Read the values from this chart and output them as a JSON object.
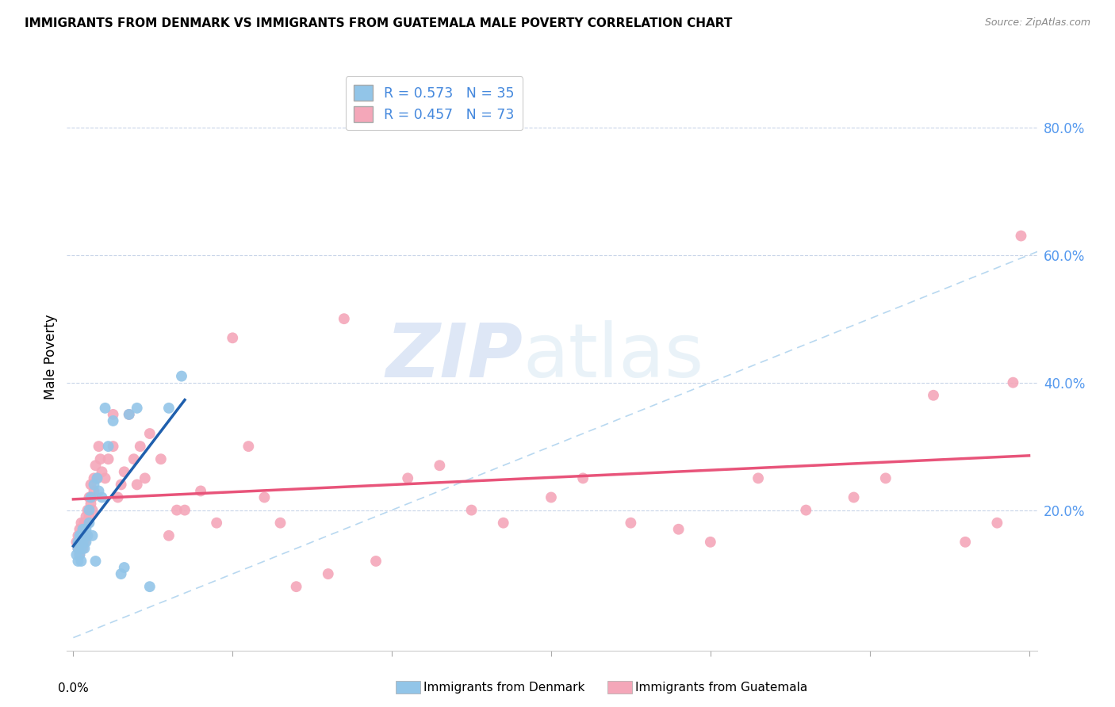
{
  "title": "IMMIGRANTS FROM DENMARK VS IMMIGRANTS FROM GUATEMALA MALE POVERTY CORRELATION CHART",
  "source": "Source: ZipAtlas.com",
  "ylabel": "Male Poverty",
  "ylabel_right_ticks": [
    "80.0%",
    "60.0%",
    "40.0%",
    "20.0%"
  ],
  "ylabel_right_vals": [
    0.8,
    0.6,
    0.4,
    0.2
  ],
  "xlim": [
    0.0,
    0.6
  ],
  "ylim": [
    0.0,
    0.9
  ],
  "denmark_R": 0.573,
  "denmark_N": 35,
  "guatemala_R": 0.457,
  "guatemala_N": 73,
  "denmark_color": "#92C5E8",
  "guatemala_color": "#F4A7B9",
  "denmark_line_color": "#1F5FAD",
  "guatemala_line_color": "#E8547A",
  "diagonal_color": "#B8D8F0",
  "legend_denmark_label": "R = 0.573   N = 35",
  "legend_guatemala_label": "R = 0.457   N = 73",
  "denmark_x": [
    0.002,
    0.003,
    0.003,
    0.003,
    0.004,
    0.004,
    0.005,
    0.005,
    0.005,
    0.006,
    0.006,
    0.007,
    0.007,
    0.008,
    0.008,
    0.009,
    0.01,
    0.01,
    0.011,
    0.012,
    0.013,
    0.014,
    0.015,
    0.016,
    0.018,
    0.02,
    0.022,
    0.025,
    0.03,
    0.032,
    0.035,
    0.04,
    0.048,
    0.06,
    0.068
  ],
  "denmark_y": [
    0.13,
    0.14,
    0.12,
    0.15,
    0.13,
    0.16,
    0.14,
    0.16,
    0.12,
    0.15,
    0.17,
    0.14,
    0.16,
    0.15,
    0.17,
    0.16,
    0.18,
    0.2,
    0.22,
    0.16,
    0.24,
    0.12,
    0.25,
    0.23,
    0.22,
    0.36,
    0.3,
    0.34,
    0.1,
    0.11,
    0.35,
    0.36,
    0.08,
    0.36,
    0.41
  ],
  "guatemala_x": [
    0.002,
    0.003,
    0.003,
    0.004,
    0.004,
    0.005,
    0.005,
    0.006,
    0.006,
    0.007,
    0.007,
    0.008,
    0.008,
    0.009,
    0.009,
    0.01,
    0.01,
    0.011,
    0.011,
    0.012,
    0.012,
    0.013,
    0.013,
    0.014,
    0.015,
    0.016,
    0.017,
    0.018,
    0.02,
    0.022,
    0.025,
    0.025,
    0.028,
    0.03,
    0.032,
    0.035,
    0.038,
    0.04,
    0.042,
    0.045,
    0.048,
    0.055,
    0.06,
    0.065,
    0.07,
    0.08,
    0.09,
    0.1,
    0.11,
    0.12,
    0.13,
    0.14,
    0.16,
    0.17,
    0.19,
    0.21,
    0.23,
    0.25,
    0.27,
    0.3,
    0.32,
    0.35,
    0.38,
    0.4,
    0.43,
    0.46,
    0.49,
    0.51,
    0.54,
    0.56,
    0.58,
    0.59,
    0.595
  ],
  "guatemala_y": [
    0.15,
    0.14,
    0.16,
    0.13,
    0.17,
    0.15,
    0.18,
    0.14,
    0.16,
    0.18,
    0.15,
    0.19,
    0.16,
    0.2,
    0.18,
    0.22,
    0.19,
    0.21,
    0.24,
    0.2,
    0.22,
    0.25,
    0.23,
    0.27,
    0.25,
    0.3,
    0.28,
    0.26,
    0.25,
    0.28,
    0.3,
    0.35,
    0.22,
    0.24,
    0.26,
    0.35,
    0.28,
    0.24,
    0.3,
    0.25,
    0.32,
    0.28,
    0.16,
    0.2,
    0.2,
    0.23,
    0.18,
    0.47,
    0.3,
    0.22,
    0.18,
    0.08,
    0.1,
    0.5,
    0.12,
    0.25,
    0.27,
    0.2,
    0.18,
    0.22,
    0.25,
    0.18,
    0.17,
    0.15,
    0.25,
    0.2,
    0.22,
    0.25,
    0.38,
    0.15,
    0.18,
    0.4,
    0.63
  ],
  "watermark_zip": "ZIP",
  "watermark_atlas": "atlas",
  "background_color": "#ffffff",
  "grid_color": "#c8d4e8"
}
